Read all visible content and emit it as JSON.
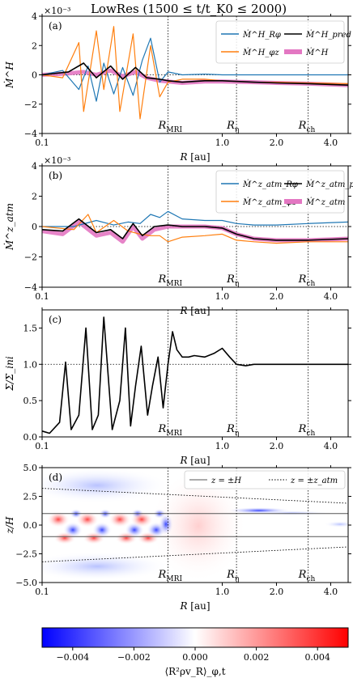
{
  "figure": {
    "title": "LowRes (1500 ≤ t/t_K0 ≤ 2000)",
    "colors": {
      "blue": "#1f77b4",
      "orange": "#ff7f0e",
      "black": "#000000",
      "pink": "#e377c2",
      "cmap_neg": "#0000ff",
      "cmap_pos": "#ff0000"
    },
    "xaxis": {
      "scale": "log",
      "range": [
        0.1,
        5.0
      ],
      "ticks": [
        0.1,
        1.0,
        2.0,
        4.0
      ],
      "tick_labels": [
        "0.1",
        "1.0",
        "2.0",
        "4.0"
      ],
      "label": "R [au]"
    },
    "markers": [
      {
        "x": 0.5,
        "label": "R_MRI"
      },
      {
        "x": 1.2,
        "label": "R_η"
      },
      {
        "x": 3.0,
        "label": "R_ch"
      }
    ]
  },
  "chart_data": [
    {
      "type": "line",
      "panel": "(a)",
      "ylabel": "Ṁ^H",
      "yscale_text": "×10⁻³",
      "ylim": [
        -4,
        4
      ],
      "yticks": [
        -4,
        -2,
        0,
        2,
        4
      ],
      "legend": "top-right",
      "series": [
        {
          "name": "Ṁ^H_Rφ",
          "color": "#1f77b4",
          "x": [
            0.1,
            0.13,
            0.16,
            0.18,
            0.2,
            0.22,
            0.25,
            0.28,
            0.32,
            0.36,
            0.4,
            0.45,
            0.5,
            0.6,
            0.8,
            1.0,
            1.5,
            2.0,
            3.0,
            5.0
          ],
          "y": [
            0.0,
            0.3,
            -1.0,
            0.6,
            -1.8,
            0.8,
            -1.3,
            0.5,
            -1.4,
            1.0,
            2.5,
            -0.5,
            0.2,
            0.0,
            0.05,
            0.0,
            0.0,
            0.0,
            0.0,
            0.0
          ]
        },
        {
          "name": "Ṁ^H_φz",
          "color": "#ff7f0e",
          "x": [
            0.1,
            0.13,
            0.16,
            0.17,
            0.2,
            0.22,
            0.25,
            0.27,
            0.32,
            0.35,
            0.4,
            0.45,
            0.5,
            0.6,
            0.8,
            1.0,
            1.5,
            2.0,
            3.0,
            5.0
          ],
          "y": [
            0.0,
            -0.2,
            2.2,
            -2.5,
            3.0,
            -1.0,
            3.3,
            -2.5,
            2.8,
            -3.0,
            2.0,
            -1.5,
            -0.5,
            -0.3,
            -0.3,
            -0.4,
            -0.5,
            -0.5,
            -0.55,
            -0.6
          ]
        },
        {
          "name": "Ṁ^H_pred",
          "color": "#000000",
          "x": [
            0.1,
            0.14,
            0.17,
            0.2,
            0.24,
            0.28,
            0.33,
            0.38,
            0.45,
            0.5,
            0.6,
            0.8,
            1.0,
            1.5,
            2.0,
            3.0,
            5.0
          ],
          "y": [
            0.0,
            0.2,
            0.8,
            -0.2,
            0.6,
            -0.3,
            0.5,
            -0.2,
            -0.3,
            -0.4,
            -0.5,
            -0.4,
            -0.4,
            -0.5,
            -0.55,
            -0.6,
            -0.7
          ]
        },
        {
          "name": "Ṁ^H",
          "color": "#e377c2",
          "x": [
            0.1,
            0.14,
            0.17,
            0.2,
            0.24,
            0.28,
            0.33,
            0.38,
            0.45,
            0.5,
            0.6,
            0.8,
            1.0,
            1.5,
            2.0,
            3.0,
            5.0
          ],
          "y": [
            0.0,
            0.1,
            0.2,
            0.0,
            0.3,
            -0.1,
            0.2,
            -0.2,
            -0.4,
            -0.45,
            -0.55,
            -0.45,
            -0.45,
            -0.5,
            -0.55,
            -0.6,
            -0.7
          ]
        }
      ]
    },
    {
      "type": "line",
      "panel": "(b)",
      "ylabel": "Ṁ^z_atm",
      "yscale_text": "×10⁻³",
      "ylim": [
        -4,
        4
      ],
      "yticks": [
        -4,
        -2,
        0,
        2,
        4
      ],
      "legend": "top-right",
      "series": [
        {
          "name": "Ṁ^z_atm_Rφ",
          "color": "#1f77b4",
          "x": [
            0.1,
            0.15,
            0.2,
            0.25,
            0.3,
            0.35,
            0.4,
            0.45,
            0.5,
            0.6,
            0.8,
            1.0,
            1.2,
            1.5,
            2.0,
            3.0,
            5.0
          ],
          "y": [
            0.0,
            0.0,
            0.4,
            0.1,
            0.3,
            0.2,
            0.8,
            0.6,
            1.0,
            0.5,
            0.4,
            0.4,
            0.2,
            0.1,
            0.1,
            0.2,
            0.3
          ]
        },
        {
          "name": "Ṁ^z_atm_φz",
          "color": "#ff7f0e",
          "x": [
            0.1,
            0.15,
            0.18,
            0.2,
            0.25,
            0.3,
            0.35,
            0.4,
            0.45,
            0.5,
            0.6,
            0.8,
            1.0,
            1.2,
            1.5,
            2.0,
            3.0,
            5.0
          ],
          "y": [
            0.0,
            -0.2,
            0.8,
            -0.4,
            0.4,
            -0.3,
            -0.5,
            -0.6,
            -0.6,
            -1.0,
            -0.7,
            -0.6,
            -0.5,
            -0.9,
            -1.0,
            -1.1,
            -1.0,
            -1.0
          ]
        },
        {
          "name": "Ṁ^z_atm_pred",
          "color": "#000000",
          "x": [
            0.1,
            0.13,
            0.16,
            0.2,
            0.24,
            0.28,
            0.32,
            0.36,
            0.42,
            0.5,
            0.6,
            0.8,
            1.0,
            1.2,
            1.5,
            2.0,
            3.0,
            5.0
          ],
          "y": [
            -0.2,
            -0.3,
            0.5,
            -0.4,
            -0.2,
            -0.8,
            0.2,
            -0.6,
            0.0,
            0.1,
            0.0,
            0.0,
            -0.1,
            -0.5,
            -0.8,
            -0.9,
            -0.9,
            -0.8
          ]
        },
        {
          "name": "Ṁ^z_atm",
          "color": "#e377c2",
          "x": [
            0.1,
            0.13,
            0.16,
            0.2,
            0.24,
            0.28,
            0.32,
            0.36,
            0.42,
            0.5,
            0.6,
            0.8,
            1.0,
            1.2,
            1.5,
            2.0,
            3.0,
            5.0
          ],
          "y": [
            -0.3,
            -0.5,
            0.3,
            -0.6,
            -0.4,
            -1.0,
            0.0,
            -0.8,
            -0.2,
            0.0,
            0.0,
            0.0,
            -0.1,
            -0.5,
            -0.8,
            -0.9,
            -0.9,
            -0.8
          ]
        }
      ]
    },
    {
      "type": "line",
      "panel": "(c)",
      "ylabel": "Σ/Σ_ini",
      "ylim": [
        0.0,
        1.75
      ],
      "yticks": [
        0.0,
        0.5,
        1.0,
        1.5
      ],
      "hline": 1.0,
      "series": [
        {
          "name": "Σ/Σ_ini",
          "color": "#000000",
          "x": [
            0.1,
            0.11,
            0.125,
            0.135,
            0.145,
            0.16,
            0.175,
            0.19,
            0.205,
            0.22,
            0.245,
            0.27,
            0.29,
            0.31,
            0.33,
            0.355,
            0.385,
            0.41,
            0.44,
            0.47,
            0.5,
            0.53,
            0.56,
            0.6,
            0.65,
            0.7,
            0.8,
            0.9,
            1.0,
            1.1,
            1.2,
            1.35,
            1.5,
            2.0,
            3.0,
            5.0
          ],
          "y": [
            0.08,
            0.05,
            0.2,
            1.03,
            0.1,
            0.3,
            1.5,
            0.1,
            0.3,
            1.65,
            0.1,
            0.5,
            1.5,
            0.15,
            0.7,
            1.25,
            0.3,
            0.7,
            1.1,
            0.4,
            1.0,
            1.45,
            1.2,
            1.1,
            1.1,
            1.12,
            1.1,
            1.15,
            1.22,
            1.1,
            1.0,
            0.98,
            1.0,
            1.0,
            1.0,
            1.0
          ]
        }
      ]
    },
    {
      "type": "heatmap",
      "panel": "(d)",
      "ylabel": "z/H",
      "ylim": [
        -5.0,
        5.0
      ],
      "yticks": [
        -5.0,
        -2.5,
        0.0,
        2.5,
        5.0
      ],
      "legend": "top-right",
      "lines": [
        {
          "name": "z = ±H",
          "style": "solid"
        },
        {
          "name": "z = ±z_atm",
          "style": "dotted"
        }
      ],
      "colorbar": {
        "label": "⟨R²ρv_R⟩_φ,t",
        "range": [
          -0.005,
          0.005
        ],
        "ticks": [
          -0.004,
          -0.002,
          0.0,
          0.002,
          0.004
        ],
        "tick_labels": [
          "−0.004",
          "−0.002",
          "0.000",
          "0.002",
          "0.004"
        ]
      }
    }
  ]
}
